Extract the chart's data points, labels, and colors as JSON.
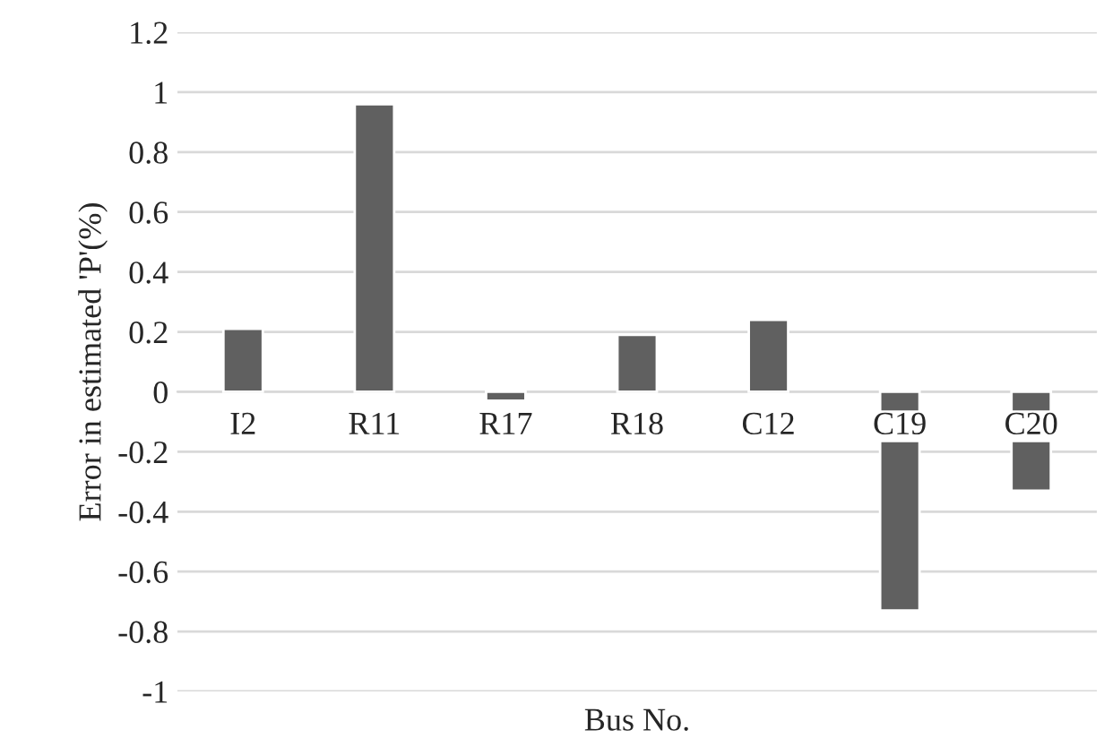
{
  "chart_data": {
    "type": "bar",
    "xlabel": "Bus No.",
    "ylabel": "Error in estimated 'P'(%)",
    "categories": [
      "I2",
      "R11",
      "R17",
      "R18",
      "C12",
      "C19",
      "C20"
    ],
    "values": [
      0.21,
      0.96,
      -0.03,
      0.19,
      0.24,
      -0.73,
      -0.33
    ],
    "color": "#606060",
    "ylim": [
      -1,
      1.2
    ],
    "yticks": [
      -1,
      -0.8,
      -0.6,
      -0.4,
      -0.2,
      0,
      0.2,
      0.4,
      0.6,
      0.8,
      1,
      1.2
    ],
    "grid": "y",
    "legend": false
  }
}
